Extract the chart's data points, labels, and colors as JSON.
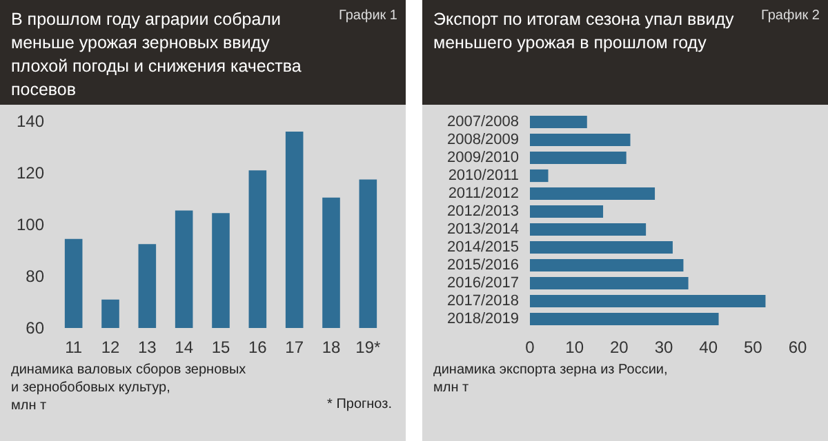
{
  "chart_data": [
    {
      "type": "bar",
      "title": "В прошлом году аграрии собрали меньше урожая зерновых ввиду плохой погоды и снижения качества посевов",
      "annotations": [
        "График 1",
        "* Прогноз."
      ],
      "xlabel": "динамика валовых сборов зерновых\nи зернобобовых культур,\nмлн т",
      "categories": [
        "11",
        "12",
        "13",
        "14",
        "15",
        "16",
        "17",
        "18",
        "19*"
      ],
      "values": [
        94.5,
        71,
        92.5,
        105.5,
        104.5,
        121,
        136,
        110.5,
        117.5
      ],
      "color": "#2f6e95",
      "ylim": [
        60,
        140
      ],
      "yticks": [
        60,
        80,
        100,
        120,
        140
      ],
      "grid": false
    },
    {
      "type": "bar",
      "orientation": "horizontal",
      "title": "Экспорт по итогам сезона упал ввиду меньшего урожая в прошлом году",
      "annotations": [
        "График 2"
      ],
      "xlabel": "динамика экспорта зерна из России,\nмлн т",
      "categories": [
        "2007/2008",
        "2008/2009",
        "2009/2010",
        "2010/2011",
        "2011/2012",
        "2012/2013",
        "2013/2014",
        "2014/2015",
        "2015/2016",
        "2016/2017",
        "2017/2018",
        "2018/2019"
      ],
      "values": [
        12.8,
        22.5,
        21.6,
        4.1,
        28,
        16.4,
        26,
        32,
        34.4,
        35.5,
        52.8,
        42.3
      ],
      "color": "#2f6e95",
      "xlim": [
        0,
        60
      ],
      "xticks": [
        0,
        10,
        20,
        30,
        40,
        50,
        60
      ],
      "grid": false
    }
  ]
}
